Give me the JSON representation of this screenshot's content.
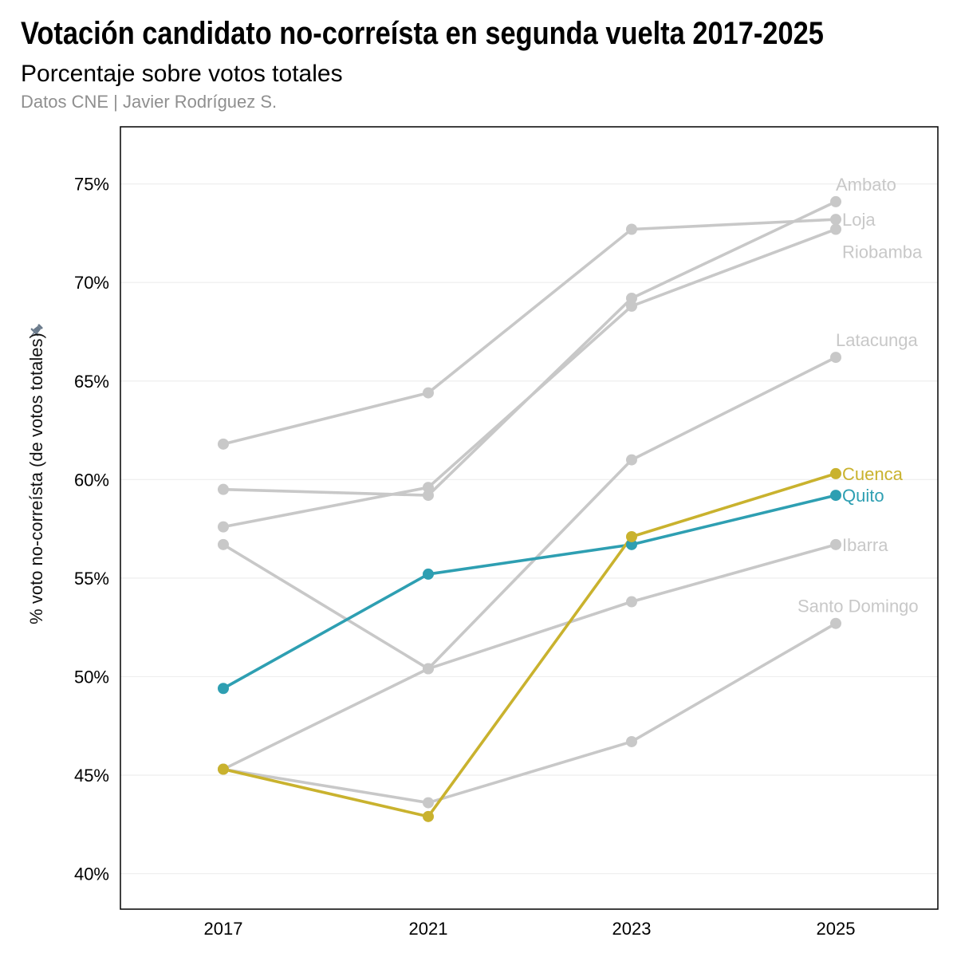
{
  "chart_data": {
    "type": "line",
    "title": "Votación candidato no-correísta en segunda vuelta 2017-2025",
    "subtitle": "Porcentaje sobre votos totales",
    "caption": "Datos CNE | Javier Rodríguez S.",
    "xlabel": "",
    "ylabel": "% voto no-correísta (de votos totales)",
    "categories": [
      "2017",
      "2021",
      "2023",
      "2025"
    ],
    "yticks": [
      "40%",
      "45%",
      "50%",
      "55%",
      "60%",
      "65%",
      "70%",
      "75%"
    ],
    "ytick_values": [
      40,
      45,
      50,
      55,
      60,
      65,
      70,
      75
    ],
    "ylim": [
      38.2,
      77.9
    ],
    "grid": true,
    "colors": {
      "gray": "#c8c8c8",
      "highlight_cuenca": "#c9b22e",
      "highlight_quito": "#2e9fb2",
      "pin": "#6b7b8c"
    },
    "series": [
      {
        "name": "Ambato",
        "values": [
          59.5,
          59.2,
          69.2,
          74.1
        ],
        "color": "#c8c8c8",
        "highlight": false
      },
      {
        "name": "Loja",
        "values": [
          61.8,
          64.4,
          72.7,
          73.2
        ],
        "color": "#c8c8c8",
        "highlight": false
      },
      {
        "name": "Riobamba",
        "values": [
          57.6,
          59.6,
          68.8,
          72.7
        ],
        "color": "#c8c8c8",
        "highlight": false
      },
      {
        "name": "Latacunga",
        "values": [
          56.7,
          50.4,
          61.0,
          66.2
        ],
        "color": "#c8c8c8",
        "highlight": false
      },
      {
        "name": "Ibarra",
        "values": [
          45.3,
          50.4,
          53.8,
          56.7
        ],
        "color": "#c8c8c8",
        "highlight": false
      },
      {
        "name": "Santo Domingo",
        "values": [
          45.3,
          43.6,
          46.7,
          52.7
        ],
        "color": "#c8c8c8",
        "highlight": false
      },
      {
        "name": "Quito",
        "values": [
          49.4,
          55.2,
          56.7,
          59.2
        ],
        "color": "#2e9fb2",
        "highlight": true
      },
      {
        "name": "Cuenca",
        "values": [
          45.3,
          42.9,
          57.1,
          60.3
        ],
        "color": "#c9b22e",
        "highlight": true
      }
    ]
  }
}
